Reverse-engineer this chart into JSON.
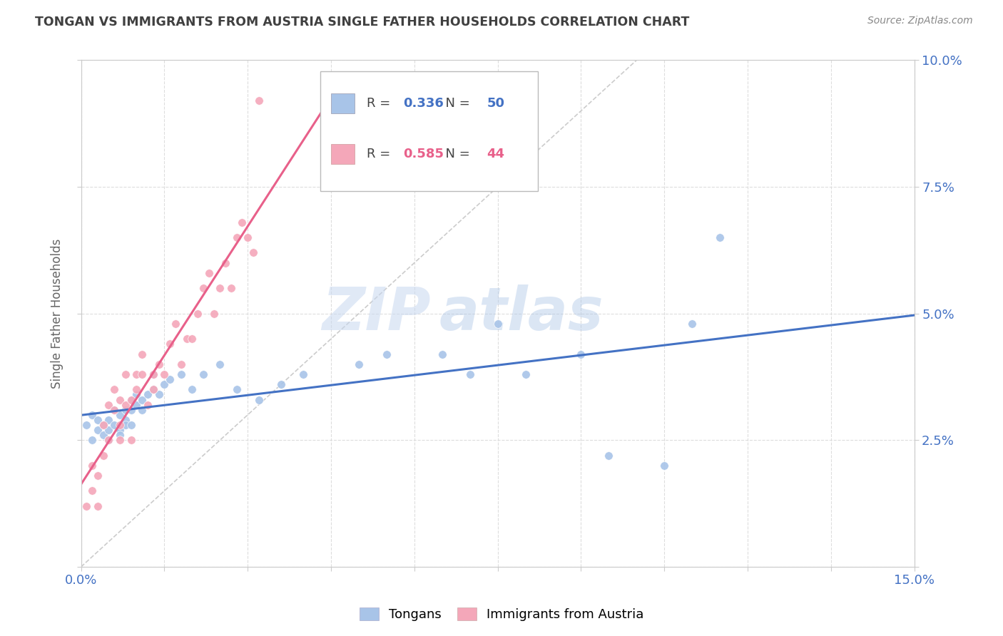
{
  "title": "TONGAN VS IMMIGRANTS FROM AUSTRIA SINGLE FATHER HOUSEHOLDS CORRELATION CHART",
  "source": "Source: ZipAtlas.com",
  "ylabel": "Single Father Households",
  "xlim": [
    0.0,
    0.15
  ],
  "ylim": [
    0.0,
    0.1
  ],
  "yticks": [
    0.0,
    0.025,
    0.05,
    0.075,
    0.1
  ],
  "ytick_labels": [
    "",
    "2.5%",
    "5.0%",
    "7.5%",
    "10.0%"
  ],
  "xticks": [
    0.0,
    0.015,
    0.03,
    0.045,
    0.06,
    0.075,
    0.09,
    0.105,
    0.12,
    0.135,
    0.15
  ],
  "xtick_labels": [
    "0.0%",
    "",
    "",
    "",
    "",
    "",
    "",
    "",
    "",
    "",
    "15.0%"
  ],
  "legend_tongans_label": "Tongans",
  "legend_austria_label": "Immigrants from Austria",
  "tongans_R": "0.336",
  "tongans_N": "50",
  "austria_R": "0.585",
  "austria_N": "44",
  "tongans_color": "#a8c4e8",
  "austria_color": "#f4a7b9",
  "tongans_line_color": "#4472c4",
  "austria_line_color": "#e8608a",
  "diagonal_color": "#cccccc",
  "background_color": "#ffffff",
  "grid_color": "#dddddd",
  "title_color": "#404040",
  "tick_label_color": "#4472c4",
  "watermark_text": "ZIP",
  "watermark_text2": "atlas",
  "tongans_x": [
    0.001,
    0.002,
    0.002,
    0.003,
    0.003,
    0.004,
    0.004,
    0.005,
    0.005,
    0.005,
    0.006,
    0.006,
    0.007,
    0.007,
    0.007,
    0.008,
    0.008,
    0.008,
    0.009,
    0.009,
    0.009,
    0.01,
    0.01,
    0.011,
    0.011,
    0.012,
    0.013,
    0.013,
    0.014,
    0.015,
    0.016,
    0.018,
    0.02,
    0.022,
    0.025,
    0.028,
    0.032,
    0.036,
    0.04,
    0.05,
    0.055,
    0.065,
    0.07,
    0.075,
    0.08,
    0.09,
    0.095,
    0.105,
    0.11,
    0.115
  ],
  "tongans_y": [
    0.028,
    0.03,
    0.025,
    0.029,
    0.027,
    0.028,
    0.026,
    0.027,
    0.025,
    0.029,
    0.028,
    0.031,
    0.027,
    0.03,
    0.026,
    0.029,
    0.031,
    0.028,
    0.031,
    0.033,
    0.028,
    0.032,
    0.034,
    0.033,
    0.031,
    0.034,
    0.035,
    0.038,
    0.034,
    0.036,
    0.037,
    0.038,
    0.035,
    0.038,
    0.04,
    0.035,
    0.033,
    0.036,
    0.038,
    0.04,
    0.042,
    0.042,
    0.038,
    0.048,
    0.038,
    0.042,
    0.022,
    0.02,
    0.048,
    0.065
  ],
  "austria_x": [
    0.001,
    0.002,
    0.002,
    0.003,
    0.003,
    0.004,
    0.004,
    0.005,
    0.005,
    0.006,
    0.006,
    0.007,
    0.007,
    0.007,
    0.008,
    0.008,
    0.009,
    0.009,
    0.01,
    0.01,
    0.011,
    0.011,
    0.012,
    0.013,
    0.013,
    0.014,
    0.015,
    0.016,
    0.017,
    0.018,
    0.019,
    0.02,
    0.021,
    0.022,
    0.023,
    0.024,
    0.025,
    0.026,
    0.027,
    0.028,
    0.029,
    0.03,
    0.031,
    0.032
  ],
  "austria_y": [
    0.012,
    0.015,
    0.02,
    0.018,
    0.012,
    0.022,
    0.028,
    0.025,
    0.032,
    0.031,
    0.035,
    0.028,
    0.033,
    0.025,
    0.032,
    0.038,
    0.033,
    0.025,
    0.035,
    0.038,
    0.038,
    0.042,
    0.032,
    0.035,
    0.038,
    0.04,
    0.038,
    0.044,
    0.048,
    0.04,
    0.045,
    0.045,
    0.05,
    0.055,
    0.058,
    0.05,
    0.055,
    0.06,
    0.055,
    0.065,
    0.068,
    0.065,
    0.062,
    0.092
  ]
}
